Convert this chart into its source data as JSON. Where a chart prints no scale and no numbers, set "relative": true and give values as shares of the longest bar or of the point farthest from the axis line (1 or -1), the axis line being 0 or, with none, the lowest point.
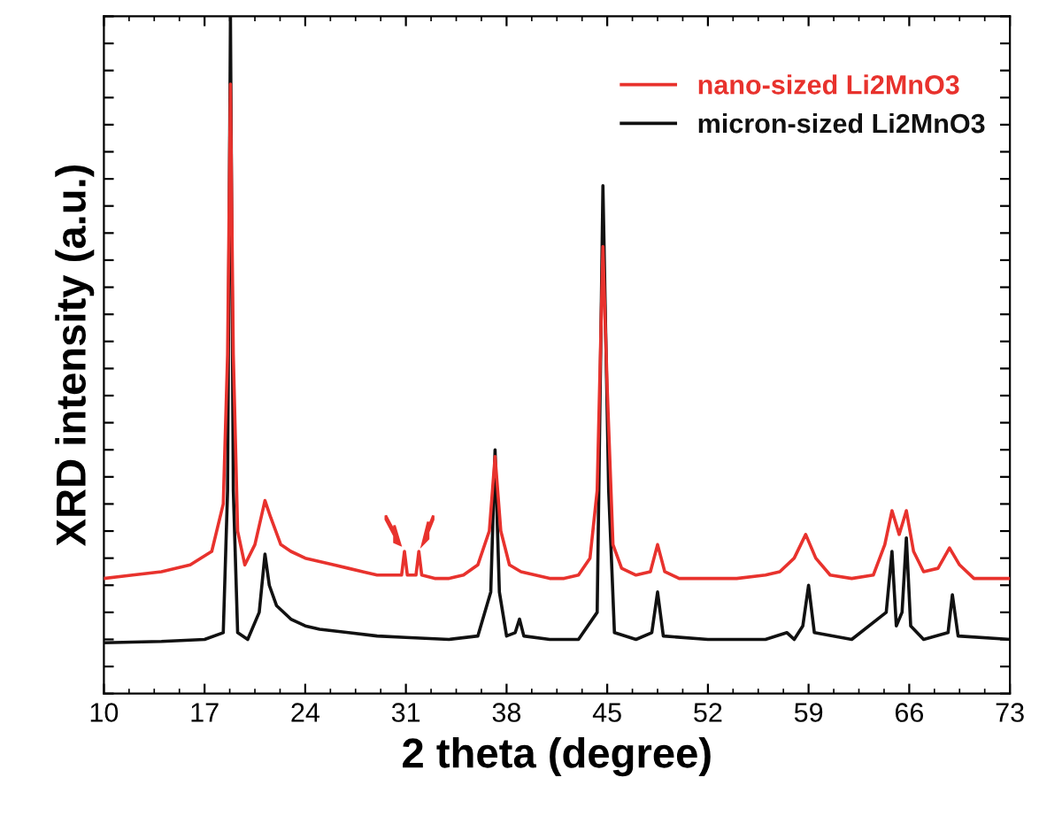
{
  "chart_data": {
    "type": "line",
    "xlabel": "2 theta (degree)",
    "ylabel": "XRD intensity (a.u.)",
    "relative": true,
    "xlim": [
      10,
      73
    ],
    "xticks": [
      10,
      17,
      24,
      31,
      38,
      45,
      52,
      59,
      66,
      73
    ],
    "tick_labels": "x",
    "legend": "top right",
    "grid": false,
    "series": [
      {
        "name": "nano-sized Li2MnO3",
        "color": "#e8322d",
        "x": [
          10,
          12,
          14,
          16,
          17.5,
          18.3,
          18.6,
          18.8,
          19.0,
          19.3,
          19.8,
          20.5,
          21.2,
          21.6,
          22.3,
          23,
          24,
          25,
          26,
          27,
          28,
          29,
          30,
          30.7,
          30.9,
          31.1,
          31.7,
          31.9,
          32.1,
          33,
          34,
          35,
          36,
          36.8,
          37.2,
          37.6,
          38.2,
          39,
          40,
          41,
          42,
          43,
          43.8,
          44.3,
          44.7,
          45.0,
          45.4,
          46,
          47,
          48,
          48.5,
          49,
          50,
          52,
          54,
          56,
          57,
          58,
          58.8,
          59.5,
          60.5,
          62,
          63.5,
          64.3,
          64.8,
          65.3,
          65.8,
          66.3,
          67,
          68,
          68.8,
          69.5,
          70.5,
          72,
          73
        ],
        "values": [
          0.17,
          0.175,
          0.18,
          0.19,
          0.21,
          0.28,
          0.5,
          0.9,
          0.5,
          0.24,
          0.19,
          0.22,
          0.285,
          0.26,
          0.22,
          0.21,
          0.2,
          0.195,
          0.19,
          0.185,
          0.18,
          0.175,
          0.175,
          0.175,
          0.21,
          0.175,
          0.175,
          0.21,
          0.175,
          0.17,
          0.17,
          0.175,
          0.19,
          0.24,
          0.35,
          0.24,
          0.19,
          0.18,
          0.175,
          0.17,
          0.17,
          0.175,
          0.2,
          0.3,
          0.66,
          0.45,
          0.22,
          0.185,
          0.175,
          0.18,
          0.22,
          0.18,
          0.17,
          0.17,
          0.17,
          0.175,
          0.18,
          0.2,
          0.235,
          0.2,
          0.175,
          0.17,
          0.175,
          0.22,
          0.27,
          0.235,
          0.27,
          0.21,
          0.18,
          0.185,
          0.215,
          0.19,
          0.17,
          0.17,
          0.17
        ]
      },
      {
        "name": "micron-sized Li2MnO3",
        "color": "#111111",
        "x": [
          10,
          14,
          17,
          18.3,
          18.6,
          18.8,
          19.0,
          19.3,
          20,
          20.8,
          21.2,
          21.5,
          22,
          23,
          24,
          25,
          27,
          29,
          31,
          34,
          36,
          36.9,
          37.2,
          37.5,
          38,
          38.6,
          38.9,
          39.2,
          41,
          43,
          44.3,
          44.7,
          45.1,
          45.5,
          47,
          48.1,
          48.5,
          48.9,
          52,
          56,
          57.5,
          58,
          58.6,
          59,
          59.4,
          62,
          64.4,
          64.8,
          65.1,
          65.5,
          65.8,
          66.1,
          67,
          68.7,
          69,
          69.4,
          73
        ],
        "values": [
          0.075,
          0.077,
          0.08,
          0.09,
          0.3,
          1.0,
          0.3,
          0.09,
          0.08,
          0.12,
          0.206,
          0.16,
          0.13,
          0.11,
          0.1,
          0.095,
          0.09,
          0.085,
          0.083,
          0.08,
          0.085,
          0.15,
          0.36,
          0.15,
          0.085,
          0.09,
          0.11,
          0.085,
          0.08,
          0.08,
          0.12,
          0.75,
          0.3,
          0.09,
          0.08,
          0.09,
          0.15,
          0.085,
          0.08,
          0.08,
          0.09,
          0.08,
          0.1,
          0.16,
          0.09,
          0.08,
          0.12,
          0.21,
          0.1,
          0.12,
          0.23,
          0.1,
          0.08,
          0.09,
          0.146,
          0.085,
          0.08
        ]
      }
    ]
  }
}
